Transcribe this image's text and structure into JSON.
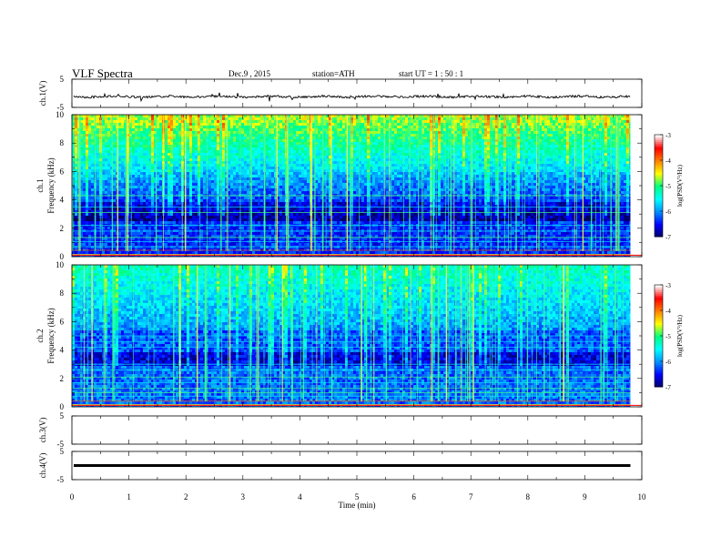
{
  "header": {
    "title": "VLF  Spectra",
    "date": "Dec.9  , 2015",
    "station": "station=ATH",
    "start": "start  UT  =   1  : 50 : 1"
  },
  "chart_data": [
    {
      "type": "line",
      "panel": "ch1-waveform",
      "ylabel": "ch.1(V)",
      "ylim": [
        -5,
        5
      ],
      "ytick_labels": [
        "5",
        "-5"
      ],
      "xlim": [
        0,
        10
      ],
      "data_end_min": 9.8,
      "series": [
        {
          "values_description_level": -1.2
        }
      ]
    },
    {
      "type": "heatmap",
      "panel": "ch1-spectrogram",
      "ylabel_channel": "ch.1",
      "ylabel": "Frequency  (kHz)",
      "ylim": [
        0,
        10
      ],
      "ytick_labels": [
        "0",
        "2",
        "4",
        "6",
        "8",
        "10"
      ],
      "xlim": [
        0,
        10
      ],
      "colorbar": {
        "label": "log(PSD(V²/Hz)",
        "range": [
          -7,
          -3
        ],
        "tick_labels": [
          "-3",
          "-4",
          "-5",
          "-6",
          "-7"
        ],
        "colors": [
          "#000060",
          "#0000ff",
          "#0090ff",
          "#00ffff",
          "#00ff80",
          "#ffff00",
          "#ff8000",
          "#ff0000",
          "#ffffff"
        ]
      }
    },
    {
      "type": "heatmap",
      "panel": "ch2-spectrogram",
      "ylabel_channel": "ch.2",
      "ylabel": "Frequency  (kHz)",
      "ylim": [
        0,
        10
      ],
      "ytick_labels": [
        "0",
        "2",
        "4",
        "6",
        "8",
        "10"
      ],
      "xlim": [
        0,
        10
      ],
      "colorbar": {
        "label": "log(PSD(V²/Hz)",
        "range": [
          -7,
          -3
        ],
        "tick_labels": [
          "-3",
          "-4",
          "-5",
          "-6",
          "-7"
        ],
        "colors": [
          "#000060",
          "#0000ff",
          "#0090ff",
          "#00ffff",
          "#00ff80",
          "#ffff00",
          "#ff8000",
          "#ff0000",
          "#ffffff"
        ]
      }
    },
    {
      "type": "line",
      "panel": "ch3-waveform",
      "ylabel": "ch.3(V)",
      "ylim": [
        -5,
        5
      ],
      "ytick_labels": [
        "5",
        "-5"
      ],
      "xlim": [
        0,
        10
      ]
    },
    {
      "type": "line",
      "panel": "ch4-waveform",
      "ylabel": "ch.4(V)",
      "ylim": [
        -5,
        5
      ],
      "ytick_labels": [
        "5",
        "-5"
      ],
      "xlim": [
        0,
        10
      ],
      "series": [
        {
          "level": 0
        }
      ]
    }
  ],
  "xaxis": {
    "label": "Time  (min)",
    "tick_labels": [
      "0",
      "1",
      "2",
      "3",
      "4",
      "5",
      "6",
      "7",
      "8",
      "9",
      "10"
    ]
  }
}
